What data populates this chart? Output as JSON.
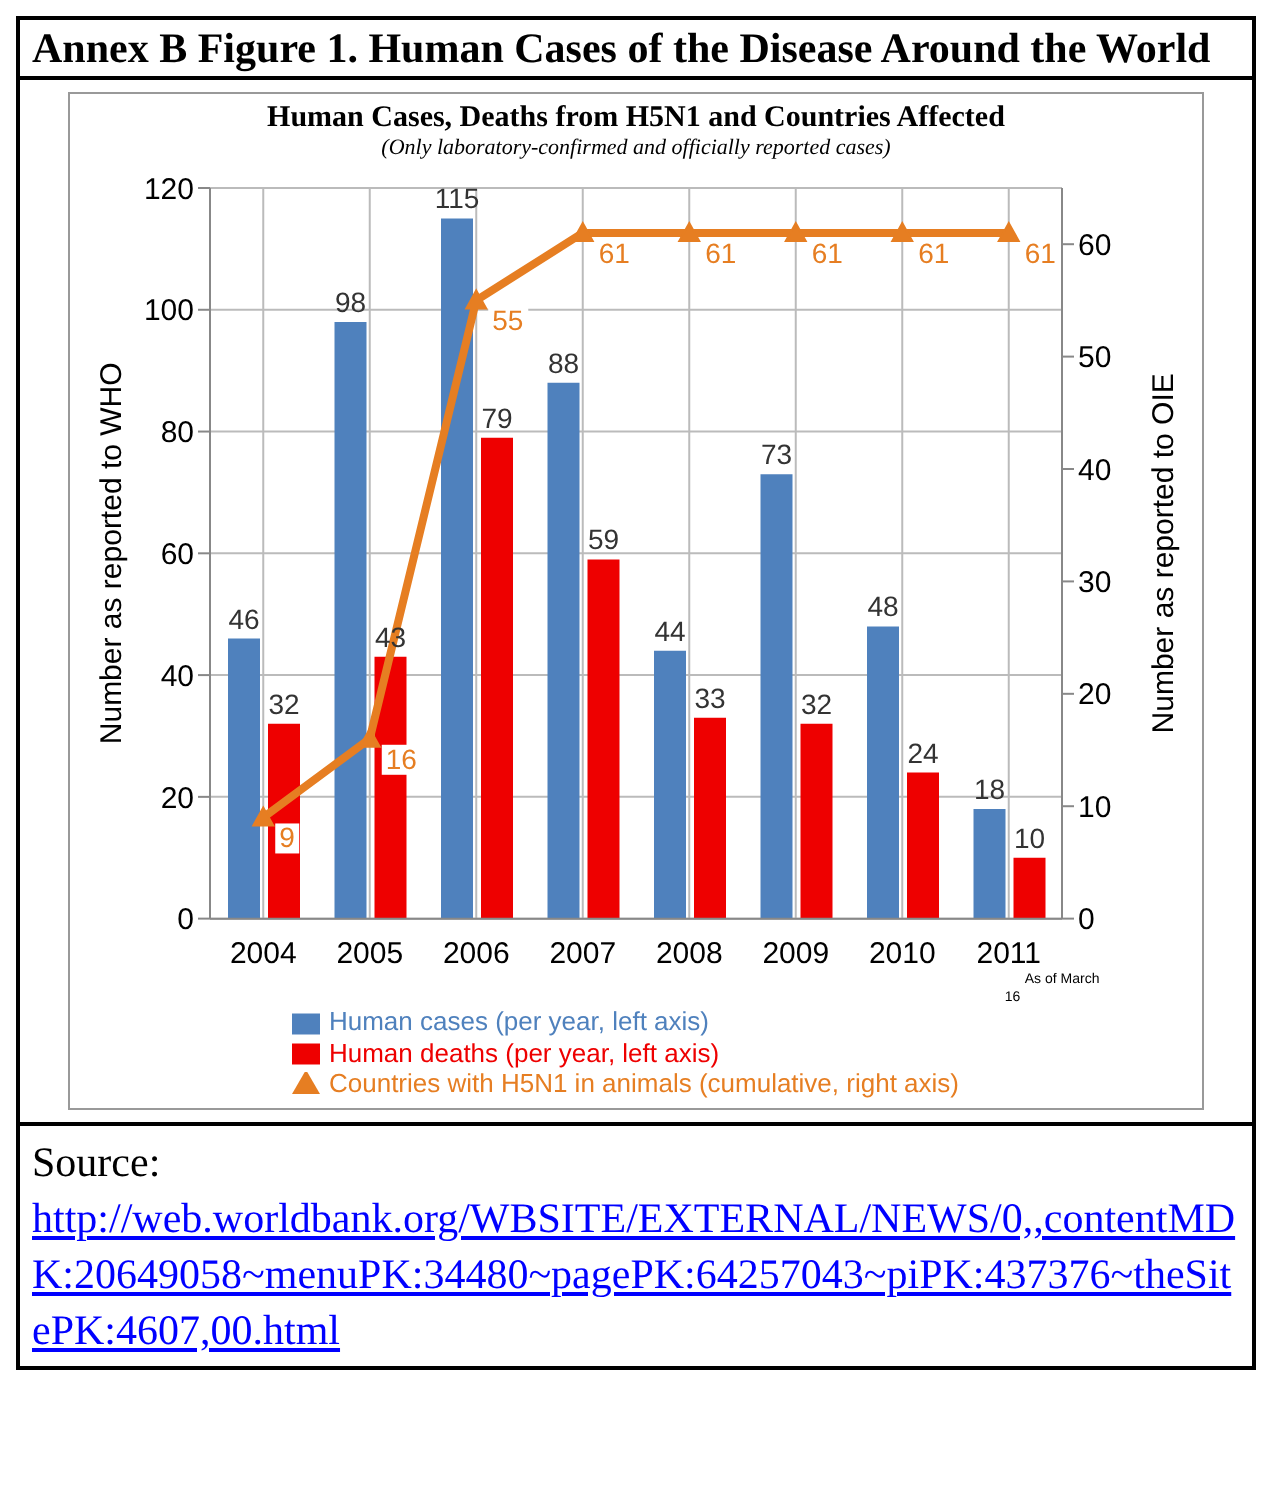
{
  "chart_data": {
    "type": "bar",
    "title": "Human Cases, Deaths from H5N1 and Countries Affected",
    "subtitle": "(Only laboratory-confirmed and officially reported cases)",
    "ylabel": "Number as reported to WHO",
    "y2label": "Number as reported to OIE",
    "categories": [
      "2004",
      "2005",
      "2006",
      "2007",
      "2008",
      "2009",
      "2010",
      "2011"
    ],
    "series": [
      {
        "name": "Human cases (per year, left axis)",
        "color": "#4f81bd",
        "values": [
          46,
          98,
          115,
          88,
          44,
          73,
          48,
          18
        ]
      },
      {
        "name": "Human deaths (per year, left axis)",
        "color": "#ee0000",
        "values": [
          32,
          43,
          79,
          59,
          33,
          32,
          24,
          10
        ]
      },
      {
        "name": "Countries with H5N1 in animals (cumulative, right axis)",
        "type": "line",
        "axis": "y2",
        "color": "#e67e22",
        "marker": "triangle",
        "values": [
          9,
          16,
          55,
          61,
          61,
          61,
          61,
          61
        ]
      }
    ],
    "ylim": [
      0,
      120
    ],
    "yticks": [
      0,
      20,
      40,
      60,
      80,
      100,
      120
    ],
    "y2lim": [
      0,
      65
    ],
    "y2ticks": [
      0,
      10,
      20,
      30,
      40,
      50,
      60
    ],
    "grid": true,
    "legend": "bottom",
    "data_labels": true,
    "annotations": [
      "Annex B Figure 1. Human Cases of the Disease Around the World",
      "As of March 16",
      "Source:",
      "http://web.worldbank.org/WBSITE/EXTERNAL/NEWS/0,,contentMDK:20649058~menuPK:34480~pagePK:64257043~piPK:437376~theSitePK:4607,00.html"
    ]
  }
}
